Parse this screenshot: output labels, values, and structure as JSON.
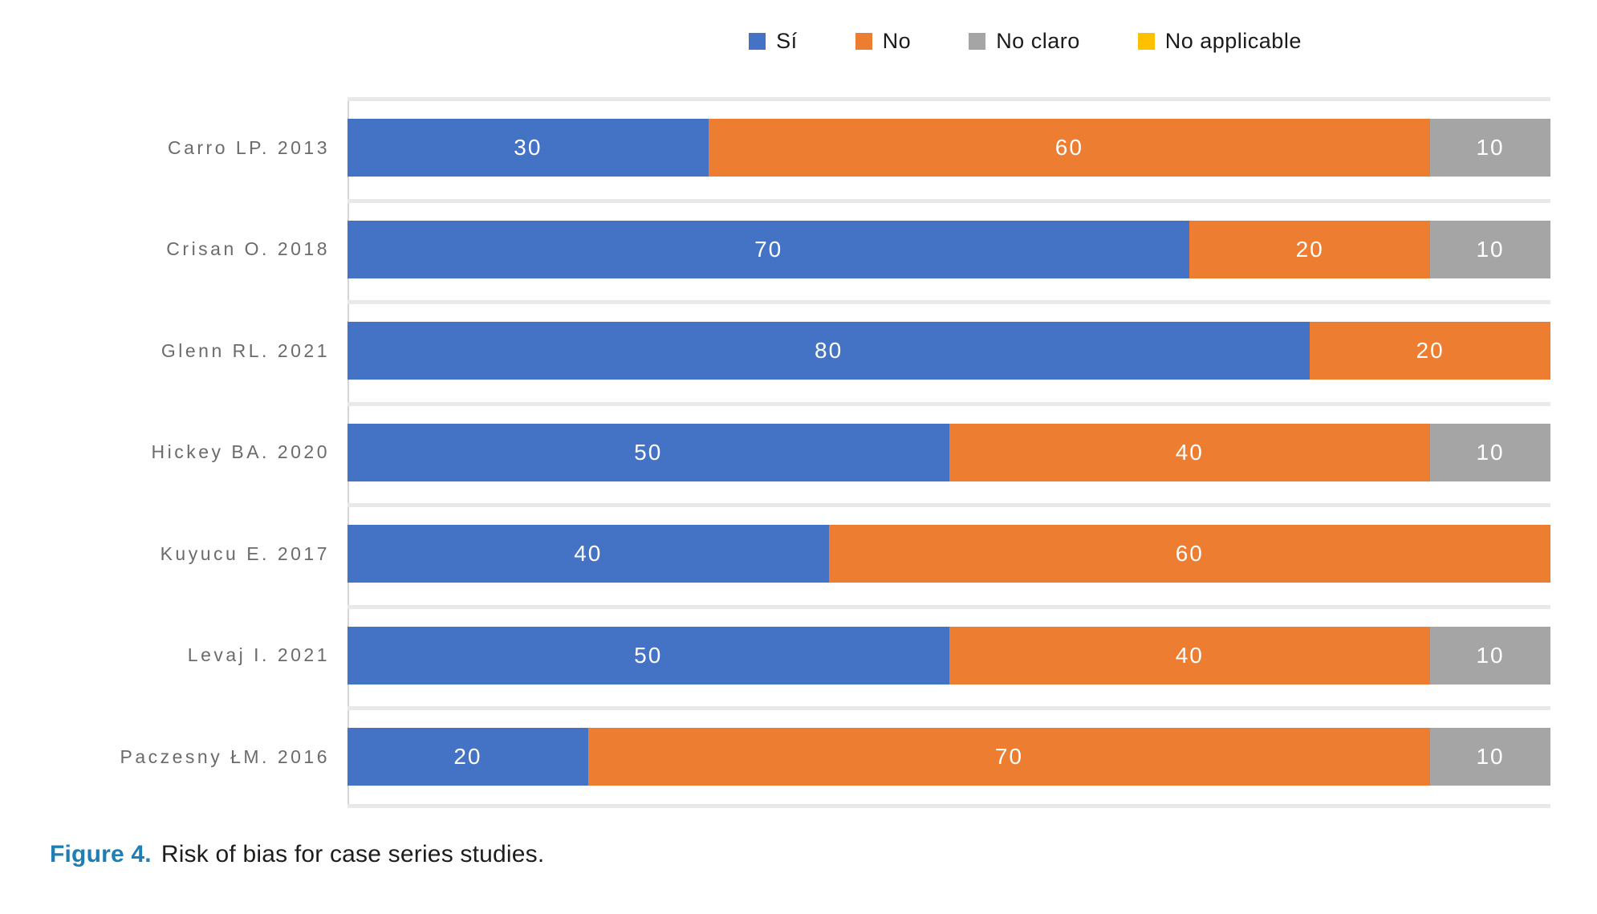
{
  "chart_data": {
    "type": "bar",
    "orientation": "horizontal-stacked",
    "title": "",
    "xlabel": "",
    "ylabel": "",
    "xlim": [
      0,
      100
    ],
    "grid": "row-separators",
    "legend_position": "top",
    "data_labels": "shown-inside-white",
    "categories": [
      "Carro LP. 2013",
      "Crisan O. 2018",
      "Glenn RL. 2021",
      "Hickey BA. 2020",
      "Kuyucu E. 2017",
      "Levaj I. 2021",
      "Paczesny ŁM. 2016"
    ],
    "series": [
      {
        "name": "Sí",
        "color": "#4472C4",
        "values": [
          30,
          70,
          80,
          50,
          40,
          50,
          20
        ]
      },
      {
        "name": "No",
        "color": "#ED7D31",
        "values": [
          60,
          20,
          20,
          40,
          60,
          40,
          70
        ]
      },
      {
        "name": "No claro",
        "color": "#A5A5A5",
        "values": [
          10,
          10,
          0,
          10,
          0,
          10,
          10
        ]
      },
      {
        "name": "No applicable",
        "color": "#FFC000",
        "values": [
          0,
          0,
          0,
          0,
          0,
          0,
          0
        ]
      }
    ]
  },
  "caption": {
    "label": "Figure 4.",
    "text": "Risk of bias for case series studies.",
    "label_color": "#1f7eb4"
  },
  "colors": {
    "background": "#ffffff",
    "axis_line": "#d6d6d6",
    "separator": "#e9e9e9",
    "category_label": "#6b6b6b",
    "data_label": "#ffffff",
    "legend_text": "#1a1a1a"
  }
}
